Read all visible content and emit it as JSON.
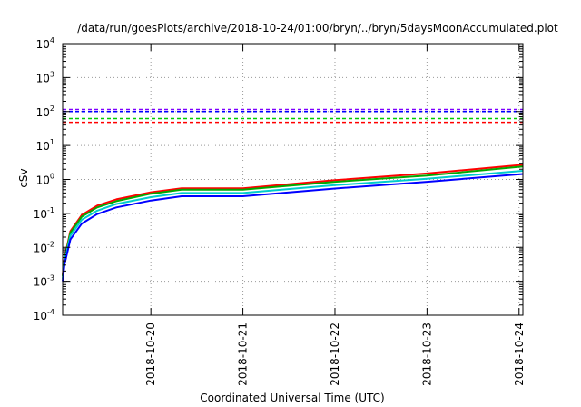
{
  "chart_data": {
    "type": "line",
    "title": "/data/run/goesPlots/archive/2018-10-24/01:00/bryn/../bryn/5daysMoonAccumulated.plot",
    "xlabel": "Coordinated Universal Time (UTC)",
    "ylabel": "cSv",
    "yscale": "log",
    "ylim": [
      0.0001,
      10000
    ],
    "xlim": [
      "2018-10-19 01:00",
      "2018-10-24 01:00"
    ],
    "grid": true,
    "y_ticks": [
      {
        "base": "10",
        "exp": "-4"
      },
      {
        "base": "10",
        "exp": "-3"
      },
      {
        "base": "10",
        "exp": "-2"
      },
      {
        "base": "10",
        "exp": "-1"
      },
      {
        "base": "10",
        "exp": "0"
      },
      {
        "base": "10",
        "exp": "1"
      },
      {
        "base": "10",
        "exp": "2"
      },
      {
        "base": "10",
        "exp": "3"
      },
      {
        "base": "10",
        "exp": "4"
      }
    ],
    "x_ticks": [
      "2018-10-20",
      "2018-10-21",
      "2018-10-22",
      "2018-10-23",
      "2018-10-24"
    ],
    "thresholds": [
      {
        "value": 115,
        "color": "#7f00ff"
      },
      {
        "value": 100,
        "color": "#0000ff"
      },
      {
        "value": 62,
        "color": "#00cc00"
      },
      {
        "value": 48,
        "color": "#ff0000"
      }
    ],
    "x": [
      "2018-10-19 01:00",
      "2018-10-19 01:30",
      "2018-10-19 03:00",
      "2018-10-19 06:00",
      "2018-10-19 10:00",
      "2018-10-19 15:00",
      "2018-10-20 00:00",
      "2018-10-20 08:00",
      "2018-10-21 00:00",
      "2018-10-22 00:00",
      "2018-10-23 00:00",
      "2018-10-24 01:00"
    ],
    "series": [
      {
        "color": "#ff0000",
        "values": [
          0.0015,
          0.005,
          0.03,
          0.09,
          0.17,
          0.26,
          0.42,
          0.55,
          0.55,
          0.95,
          1.5,
          2.7
        ]
      },
      {
        "color": "#00aa00",
        "values": [
          0.0014,
          0.0045,
          0.027,
          0.08,
          0.15,
          0.23,
          0.38,
          0.5,
          0.5,
          0.85,
          1.3,
          2.4
        ]
      },
      {
        "color": "#00cccc",
        "values": [
          0.0012,
          0.004,
          0.022,
          0.065,
          0.12,
          0.19,
          0.3,
          0.4,
          0.4,
          0.68,
          1.05,
          1.8
        ]
      },
      {
        "color": "#0000ff",
        "values": [
          0.001,
          0.0032,
          0.017,
          0.05,
          0.095,
          0.15,
          0.24,
          0.32,
          0.32,
          0.54,
          0.85,
          1.45
        ]
      }
    ]
  }
}
